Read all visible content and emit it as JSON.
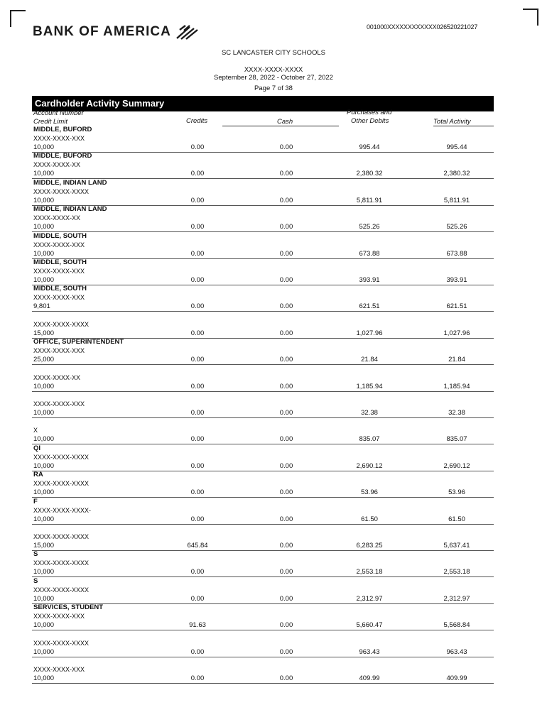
{
  "header": {
    "bank_name": "BANK OF AMERICA",
    "reference": "001000XXXXXXXXXXXX026520221027",
    "organization": "SC LANCASTER CITY SCHOOLS",
    "account": "XXXX-XXXX-XXXX",
    "period": "September 28, 2022 - October 27, 2022",
    "page": "Page 7 of 38"
  },
  "section_title": "Cardholder Activity Summary",
  "columns": {
    "account_number": "Account Number",
    "credit_limit": "Credit Limit",
    "credits": "Credits",
    "cash": "Cash",
    "purchases_1": "Purchases and",
    "purchases_2": "Other Debits",
    "total": "Total Activity"
  },
  "rows": [
    {
      "name": "MIDDLE, BUFORD",
      "account": "XXXX-XXXX-XXX",
      "limit": "10,000",
      "credits": "0.00",
      "cash": "0.00",
      "purchases": "995.44",
      "total": "995.44"
    },
    {
      "name": "MIDDLE, BUFORD",
      "account": "XXXX-XXXX-XX",
      "limit": "10,000",
      "credits": "0.00",
      "cash": "0.00",
      "purchases": "2,380.32",
      "total": "2,380.32"
    },
    {
      "name": "MIDDLE, INDIAN LAND",
      "account": "XXXX-XXXX-XXXX",
      "limit": "10,000",
      "credits": "0.00",
      "cash": "0.00",
      "purchases": "5,811.91",
      "total": "5,811.91"
    },
    {
      "name": "MIDDLE, INDIAN LAND",
      "account": "XXXX-XXXX-XX",
      "limit": "10,000",
      "credits": "0.00",
      "cash": "0.00",
      "purchases": "525.26",
      "total": "525.26"
    },
    {
      "name": "MIDDLE, SOUTH",
      "account": "XXXX-XXXX-XXX",
      "limit": "10,000",
      "credits": "0.00",
      "cash": "0.00",
      "purchases": "673.88",
      "total": "673.88"
    },
    {
      "name": "MIDDLE, SOUTH",
      "account": "XXXX-XXXX-XXX",
      "limit": "10,000",
      "credits": "0.00",
      "cash": "0.00",
      "purchases": "393.91",
      "total": "393.91"
    },
    {
      "name": "MIDDLE, SOUTH",
      "account": "XXXX-XXXX-XXX",
      "limit": "9,801",
      "credits": "0.00",
      "cash": "0.00",
      "purchases": "621.51",
      "total": "621.51"
    },
    {
      "name": "",
      "account": "XXXX-XXXX-XXXX",
      "limit": "15,000",
      "credits": "0.00",
      "cash": "0.00",
      "purchases": "1,027.96",
      "total": "1,027.96"
    },
    {
      "name": "OFFICE, SUPERINTENDENT",
      "account": "XXXX-XXXX-XXX",
      "limit": "25,000",
      "credits": "0.00",
      "cash": "0.00",
      "purchases": "21.84",
      "total": "21.84"
    },
    {
      "name": "",
      "account": "XXXX-XXXX-XX",
      "limit": "10,000",
      "credits": "0.00",
      "cash": "0.00",
      "purchases": "1,185.94",
      "total": "1,185.94"
    },
    {
      "name": "",
      "account": "XXXX-XXXX-XXX",
      "limit": "10,000",
      "credits": "0.00",
      "cash": "0.00",
      "purchases": "32.38",
      "total": "32.38"
    },
    {
      "name": "",
      "account": "X",
      "limit": "10,000",
      "credits": "0.00",
      "cash": "0.00",
      "purchases": "835.07",
      "total": "835.07"
    },
    {
      "name": "QI",
      "account": "XXXX-XXXX-XXXX",
      "limit": "10,000",
      "credits": "0.00",
      "cash": "0.00",
      "purchases": "2,690.12",
      "total": "2,690.12"
    },
    {
      "name": "RA",
      "account": "XXXX-XXXX-XXXX",
      "limit": "10,000",
      "credits": "0.00",
      "cash": "0.00",
      "purchases": "53.96",
      "total": "53.96"
    },
    {
      "name": "F",
      "account": "XXXX-XXXX-XXXX-",
      "limit": "10,000",
      "credits": "0.00",
      "cash": "0.00",
      "purchases": "61.50",
      "total": "61.50"
    },
    {
      "name": "",
      "account": "XXXX-XXXX-XXXX",
      "limit": "15,000",
      "credits": "645.84",
      "cash": "0.00",
      "purchases": "6,283.25",
      "total": "5,637.41"
    },
    {
      "name": "S",
      "account": "XXXX-XXXX-XXXX",
      "limit": "10,000",
      "credits": "0.00",
      "cash": "0.00",
      "purchases": "2,553.18",
      "total": "2,553.18"
    },
    {
      "name": "S",
      "account": "XXXX-XXXX-XXXX",
      "limit": "10,000",
      "credits": "0.00",
      "cash": "0.00",
      "purchases": "2,312.97",
      "total": "2,312.97"
    },
    {
      "name": "SERVICES, STUDENT",
      "account": "XXXX-XXXX-XXX",
      "limit": "10,000",
      "credits": "91.63",
      "cash": "0.00",
      "purchases": "5,660.47",
      "total": "5,568.84"
    },
    {
      "name": "",
      "account": "XXXX-XXXX-XXXX",
      "limit": "10,000",
      "credits": "0.00",
      "cash": "0.00",
      "purchases": "963.43",
      "total": "963.43"
    },
    {
      "name": "",
      "account": "XXXX-XXXX-XXX",
      "limit": "10,000",
      "credits": "0.00",
      "cash": "0.00",
      "purchases": "409.99",
      "total": "409.99"
    }
  ],
  "colors": {
    "header_bar": "#000000",
    "text": "#111111"
  },
  "icons": {
    "logo": "bank-of-america-flag-icon"
  }
}
